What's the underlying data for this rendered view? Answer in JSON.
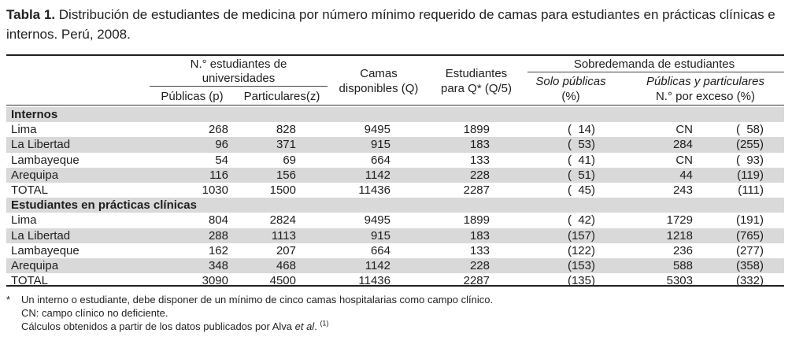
{
  "caption": {
    "label": "Tabla 1.",
    "text": "Distribución de estudiantes de medicina por número mínimo requerido de camas para estudiantes en prácticas clínicas e internos. Perú, 2008."
  },
  "header": {
    "group_univ": "N.° estudiantes de universidades",
    "group_univ_l1": "N.° estudiantes de",
    "group_univ_l2": "universidades",
    "publicas": "Públicas (p)",
    "particulares": "Particulares(z)",
    "camas_l1": "Camas",
    "camas_l2": "disponibles (Q)",
    "est_l1": "Estudiantes",
    "est_l2": "para Q* (Q/5)",
    "sobre": "Sobredemanda de estudiantes",
    "solo_l1": "Solo públicas",
    "solo_l2": "(%)",
    "pubpart_l1": "Públicas y particulares",
    "pubpart_l2": "N.° por exceso (%)"
  },
  "sections": [
    {
      "title": "Internos",
      "rows": [
        {
          "name": "Lima",
          "p": "268",
          "z": "828",
          "q": "9495",
          "e": "1899",
          "solo": "(  14)",
          "n": "CN",
          "pct": "(  58)"
        },
        {
          "name": "La Libertad",
          "p": "96",
          "z": "371",
          "q": "915",
          "e": "183",
          "solo": "(  53)",
          "n": "284",
          "pct": "(255)"
        },
        {
          "name": "Lambayeque",
          "p": "54",
          "z": "69",
          "q": "664",
          "e": "133",
          "solo": "(  41)",
          "n": "CN",
          "pct": "(  93)"
        },
        {
          "name": "Arequipa",
          "p": "116",
          "z": "156",
          "q": "1142",
          "e": "228",
          "solo": "(  51)",
          "n": "44",
          "pct": "(119)"
        },
        {
          "name": "TOTAL",
          "p": "1030",
          "z": "1500",
          "q": "11436",
          "e": "2287",
          "solo": "(  45)",
          "n": "243",
          "pct": "(111)"
        }
      ]
    },
    {
      "title": "Estudiantes en prácticas clínicas",
      "rows": [
        {
          "name": "Lima",
          "p": "804",
          "z": "2824",
          "q": "9495",
          "e": "1899",
          "solo": "(  42)",
          "n": "1729",
          "pct": "(191)"
        },
        {
          "name": "La Libertad",
          "p": "288",
          "z": "1113",
          "q": "915",
          "e": "183",
          "solo": "(157)",
          "n": "1218",
          "pct": "(765)"
        },
        {
          "name": "Lambayeque",
          "p": "162",
          "z": "207",
          "q": "664",
          "e": "133",
          "solo": "(122)",
          "n": "236",
          "pct": "(277)"
        },
        {
          "name": "Arequipa",
          "p": "348",
          "z": "468",
          "q": "1142",
          "e": "228",
          "solo": "(153)",
          "n": "588",
          "pct": "(358)"
        },
        {
          "name": "TOTAL",
          "p": "3090",
          "z": "4500",
          "q": "11436",
          "e": "2287",
          "solo": "(135)",
          "n": "5303",
          "pct": "(332)"
        }
      ]
    }
  ],
  "notes": {
    "star": "*",
    "line1": "Un interno o estudiante, debe disponer de un mínimo de cinco camas hospitalarias como campo clínico.",
    "line2": "CN: campo clínico no deficiente.",
    "line3_pre": "Cálculos obtenidos a partir de los datos publicados por Alva ",
    "line3_it": "et al",
    "line3_post": ".",
    "line3_ref": "(1)"
  },
  "colors": {
    "band": "#d9d9d9",
    "rule": "#222222"
  }
}
